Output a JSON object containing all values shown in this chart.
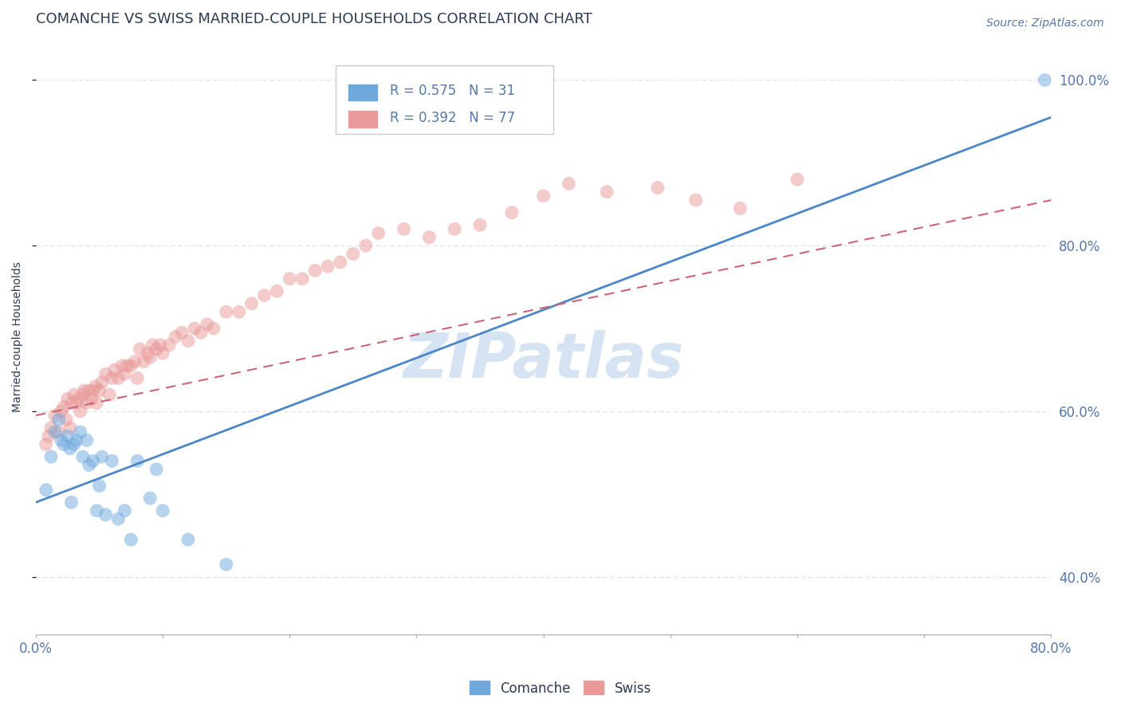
{
  "title": "COMANCHE VS SWISS MARRIED-COUPLE HOUSEHOLDS CORRELATION CHART",
  "source_text": "Source: ZipAtlas.com",
  "ylabel": "Married-couple Households",
  "xlim": [
    0.0,
    0.8
  ],
  "ylim": [
    0.33,
    1.05
  ],
  "comanche_color": "#6fa8dc",
  "swiss_color": "#ea9999",
  "comanche_line_color": "#4a86c8",
  "swiss_line_color": "#cc6677",
  "comanche_R": 0.575,
  "comanche_N": 31,
  "swiss_R": 0.392,
  "swiss_N": 77,
  "watermark": "ZIPatlas",
  "watermark_color": "#c5d8ee",
  "background_color": "#ffffff",
  "grid_color": "#dddddd",
  "title_color": "#2d3a50",
  "axis_color": "#5577aa",
  "legend_box_color": "#cccccc",
  "comanche_x": [
    0.008,
    0.012,
    0.015,
    0.018,
    0.02,
    0.022,
    0.025,
    0.027,
    0.028,
    0.03,
    0.032,
    0.035,
    0.037,
    0.04,
    0.042,
    0.045,
    0.048,
    0.05,
    0.052,
    0.055,
    0.06,
    0.065,
    0.07,
    0.075,
    0.08,
    0.09,
    0.095,
    0.1,
    0.12,
    0.15,
    0.795
  ],
  "comanche_y": [
    0.505,
    0.545,
    0.575,
    0.59,
    0.565,
    0.56,
    0.57,
    0.555,
    0.49,
    0.56,
    0.565,
    0.575,
    0.545,
    0.565,
    0.535,
    0.54,
    0.48,
    0.51,
    0.545,
    0.475,
    0.54,
    0.47,
    0.48,
    0.445,
    0.54,
    0.495,
    0.53,
    0.48,
    0.445,
    0.415,
    1.0
  ],
  "swiss_x": [
    0.008,
    0.01,
    0.012,
    0.015,
    0.018,
    0.02,
    0.022,
    0.024,
    0.025,
    0.027,
    0.028,
    0.03,
    0.032,
    0.034,
    0.035,
    0.037,
    0.038,
    0.04,
    0.042,
    0.044,
    0.045,
    0.047,
    0.048,
    0.05,
    0.052,
    0.055,
    0.058,
    0.06,
    0.062,
    0.065,
    0.068,
    0.07,
    0.072,
    0.075,
    0.078,
    0.08,
    0.082,
    0.085,
    0.088,
    0.09,
    0.092,
    0.095,
    0.098,
    0.1,
    0.105,
    0.11,
    0.115,
    0.12,
    0.125,
    0.13,
    0.135,
    0.14,
    0.15,
    0.16,
    0.17,
    0.18,
    0.19,
    0.2,
    0.21,
    0.22,
    0.23,
    0.24,
    0.25,
    0.26,
    0.27,
    0.29,
    0.31,
    0.33,
    0.35,
    0.375,
    0.4,
    0.42,
    0.45,
    0.49,
    0.52,
    0.555,
    0.6
  ],
  "swiss_y": [
    0.56,
    0.57,
    0.58,
    0.595,
    0.575,
    0.6,
    0.605,
    0.59,
    0.615,
    0.58,
    0.61,
    0.62,
    0.61,
    0.615,
    0.6,
    0.62,
    0.625,
    0.61,
    0.625,
    0.615,
    0.625,
    0.63,
    0.61,
    0.625,
    0.635,
    0.645,
    0.62,
    0.64,
    0.65,
    0.64,
    0.655,
    0.645,
    0.655,
    0.655,
    0.66,
    0.64,
    0.675,
    0.66,
    0.67,
    0.665,
    0.68,
    0.675,
    0.68,
    0.67,
    0.68,
    0.69,
    0.695,
    0.685,
    0.7,
    0.695,
    0.705,
    0.7,
    0.72,
    0.72,
    0.73,
    0.74,
    0.745,
    0.76,
    0.76,
    0.77,
    0.775,
    0.78,
    0.79,
    0.8,
    0.815,
    0.82,
    0.81,
    0.82,
    0.825,
    0.84,
    0.86,
    0.875,
    0.865,
    0.87,
    0.855,
    0.845,
    0.88
  ],
  "blue_line_x0": 0.0,
  "blue_line_y0": 0.49,
  "blue_line_x1": 0.8,
  "blue_line_y1": 0.955,
  "pink_line_x0": 0.0,
  "pink_line_y0": 0.595,
  "pink_line_x1": 0.8,
  "pink_line_y1": 0.855
}
